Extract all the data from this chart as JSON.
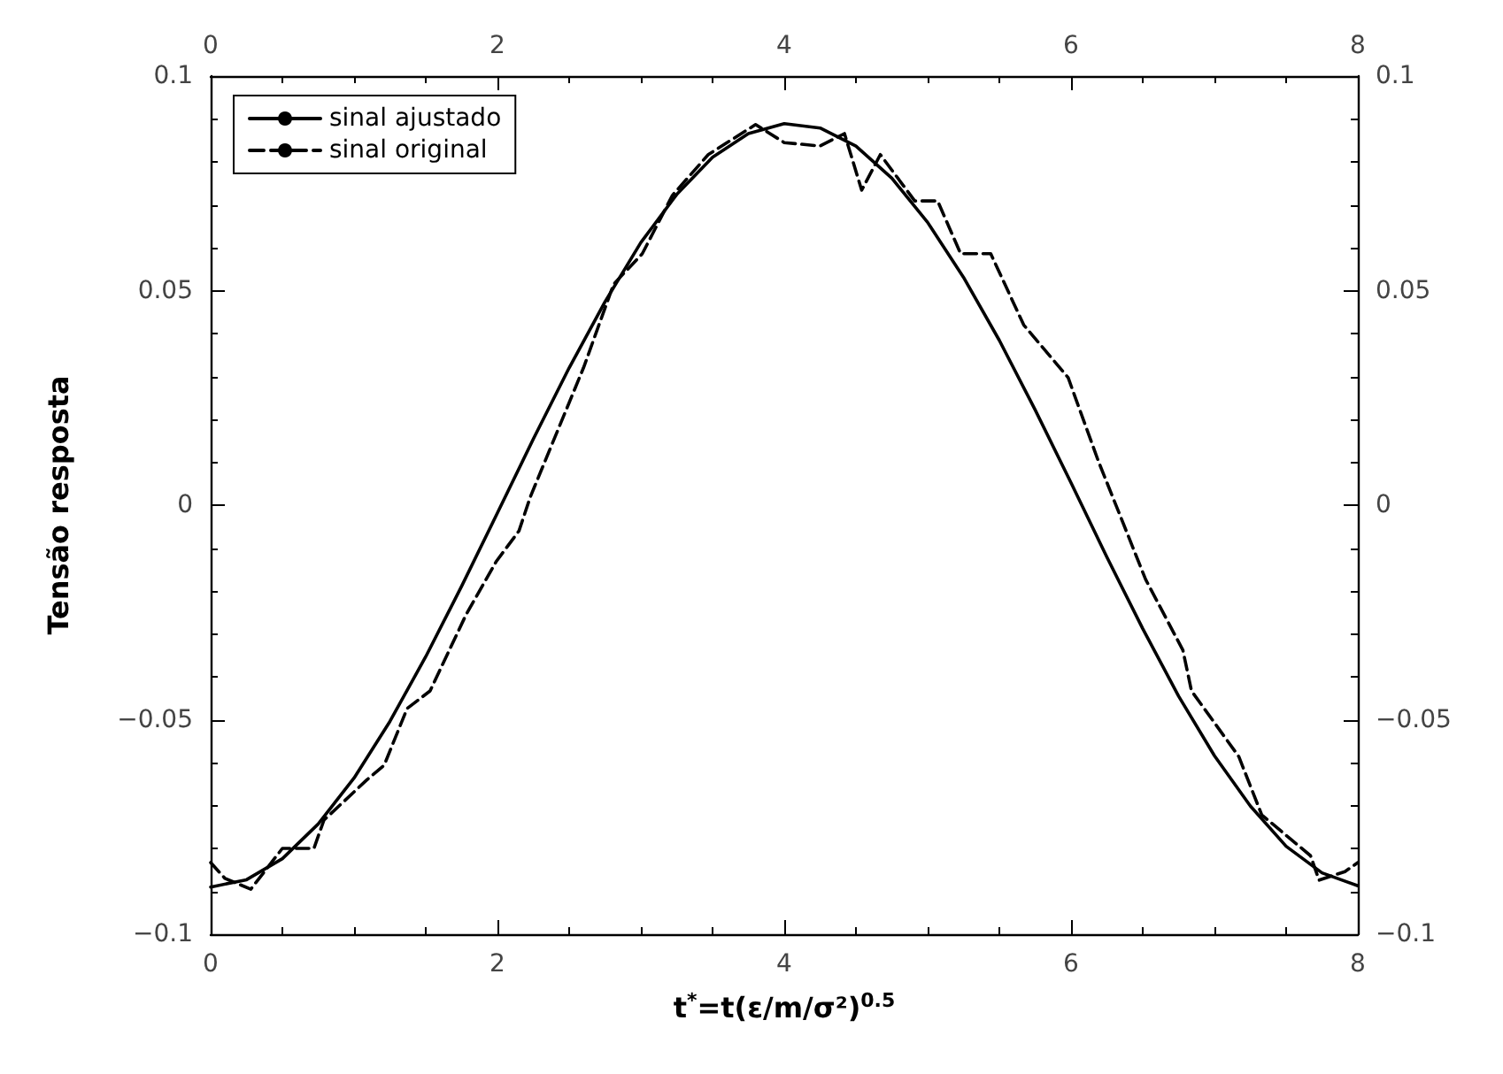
{
  "chart_data": {
    "type": "line",
    "xlabel": "t$^{*}$=t(ε/m/σ²)$^{0.5}$",
    "ylabel": "Tensão resposta",
    "xlim": [
      0,
      8
    ],
    "xticks": [
      0,
      2,
      4,
      6,
      8
    ],
    "x2lim": [
      0,
      8
    ],
    "x2ticks": [
      0,
      2,
      4,
      6,
      8
    ],
    "ylim": [
      -0.1,
      0.1
    ],
    "yticks": [
      {
        "value": -0.1,
        "label": "−0.1"
      },
      {
        "value": -0.05,
        "label": "−0.05"
      },
      0,
      0.05,
      0.1
    ],
    "y2lim": [
      -0.1,
      0.1
    ],
    "y2ticks": [
      {
        "value": -0.1,
        "label": "−0.1"
      },
      {
        "value": -0.05,
        "label": "−0.05"
      },
      0,
      0.05,
      0.1
    ],
    "grid": false,
    "legend": "top left",
    "marker": "none",
    "series": [
      {
        "name": "sinal ajustado",
        "color": "#000000",
        "line_style": "solid",
        "x": [
          0,
          0.25,
          0.5,
          0.75,
          1,
          1.25,
          1.5,
          1.75,
          2,
          2.25,
          2.5,
          2.75,
          3,
          3.25,
          3.5,
          3.75,
          4,
          4.25,
          4.5,
          4.75,
          5,
          5.25,
          5.5,
          5.75,
          6,
          6.25,
          6.5,
          6.75,
          7,
          7.25,
          7.5,
          7.75,
          8
        ],
        "values": [
          -0.089,
          -0.0873,
          -0.0824,
          -0.0743,
          -0.0636,
          -0.0504,
          -0.0353,
          -0.0189,
          -0.0018,
          0.0154,
          0.032,
          0.0474,
          0.0612,
          0.0724,
          0.0811,
          0.0866,
          0.0889,
          0.0879,
          0.0837,
          0.0762,
          0.0659,
          0.0531,
          0.0384,
          0.0222,
          0.0052,
          -0.0121,
          -0.0288,
          -0.0445,
          -0.0584,
          -0.0701,
          -0.0795,
          -0.0857,
          -0.0887
        ]
      },
      {
        "name": "sinal original",
        "color": "#000000",
        "line_style": "dashed",
        "x": [
          0,
          0.1,
          0.28,
          0.5,
          0.72,
          0.79,
          1.09,
          1.21,
          1.37,
          1.53,
          1.78,
          1.99,
          2.15,
          2.23,
          2.6,
          2.81,
          3.01,
          3.22,
          3.47,
          3.8,
          4.0,
          4.25,
          4.42,
          4.54,
          4.67,
          4.91,
          5.07,
          5.23,
          5.44,
          5.67,
          5.98,
          6.19,
          6.52,
          6.78,
          6.84,
          7.17,
          7.33,
          7.67,
          7.73,
          7.91,
          8
        ],
        "values": [
          -0.0833,
          -0.087,
          -0.0895,
          -0.08,
          -0.08,
          -0.0734,
          -0.064,
          -0.0606,
          -0.0474,
          -0.0433,
          -0.0256,
          -0.0132,
          -0.006,
          0.002,
          0.032,
          0.0515,
          0.0586,
          0.0722,
          0.0817,
          0.0887,
          0.0845,
          0.0837,
          0.0866,
          0.0734,
          0.0817,
          0.0709,
          0.0709,
          0.0586,
          0.0586,
          0.042,
          0.0297,
          0.0103,
          -0.0173,
          -0.0338,
          -0.0433,
          -0.0586,
          -0.0722,
          -0.0817,
          -0.0874,
          -0.0854,
          -0.0833
        ]
      }
    ]
  }
}
